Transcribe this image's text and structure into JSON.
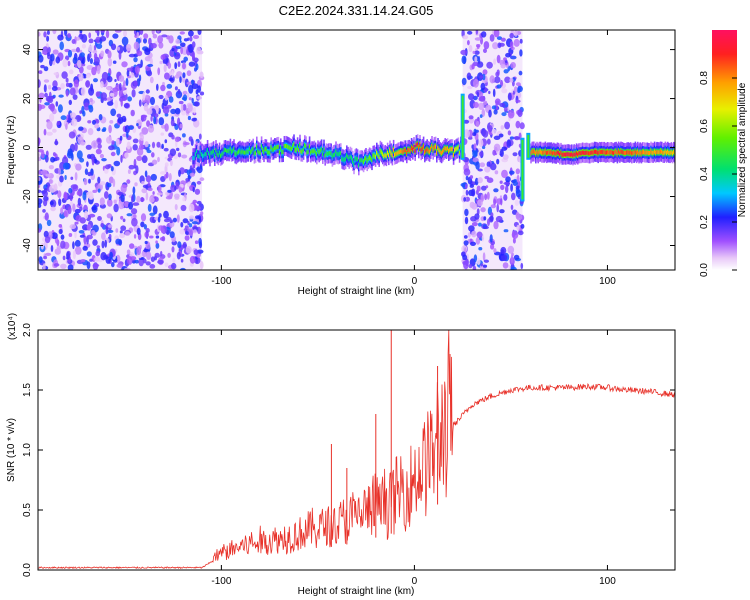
{
  "title": "C2E2.2024.331.14.24.G05",
  "chart_data": [
    {
      "type": "heatmap",
      "xlabel": "Height of straight line (km)",
      "ylabel": "Frequency (Hz)",
      "xlim": [
        -195,
        135
      ],
      "ylim": [
        -50,
        48
      ],
      "xticks": [
        -100,
        0,
        100
      ],
      "yticks": [
        -40,
        -20,
        0,
        20,
        40
      ],
      "colorbar": {
        "label": "Normalized spectral amplitude",
        "range": [
          0,
          1
        ],
        "ticks": [
          0.0,
          0.2,
          0.4,
          0.6,
          0.8
        ]
      },
      "noise_regions": [
        [
          -195,
          -110
        ],
        [
          25,
          56
        ]
      ],
      "signal_track": {
        "x": [
          -115,
          -100,
          -80,
          -60,
          -40,
          -30,
          -20,
          -10,
          0,
          10,
          20,
          25
        ],
        "frequency": [
          -3,
          -2,
          -1,
          0,
          -3,
          -6,
          -3,
          -2,
          0,
          -1,
          -2,
          0
        ],
        "amplitude": [
          0.35,
          0.45,
          0.5,
          0.55,
          0.45,
          0.45,
          0.6,
          0.75,
          0.9,
          0.8,
          0.75,
          0.5
        ]
      },
      "signal_track_2": {
        "x": [
          60,
          70,
          80,
          90,
          100,
          110,
          120,
          135
        ],
        "frequency": [
          -2,
          -2,
          -3,
          -2,
          -2,
          -2,
          -2,
          -2
        ],
        "amplitude": [
          0.8,
          0.85,
          0.95,
          0.9,
          0.85,
          0.85,
          0.8,
          0.75
        ]
      }
    },
    {
      "type": "line",
      "xlabel": "Height of straight line (km)",
      "ylabel": "SNR (10 * v/v)",
      "y_multiplier": "(x10⁴)",
      "xlim": [
        -195,
        135
      ],
      "ylim": [
        0,
        2.0
      ],
      "xticks": [
        -100,
        0,
        100
      ],
      "yticks": [
        0.0,
        0.5,
        1.0,
        1.5,
        2.0
      ],
      "series": [
        {
          "color": "#e8322a",
          "x": [
            -195,
            -110,
            -100,
            -90,
            -80,
            -70,
            -60,
            -50,
            -40,
            -30,
            -20,
            -10,
            0,
            10,
            15,
            20,
            30,
            40,
            50,
            60,
            70,
            80,
            90,
            100,
            110,
            120,
            135
          ],
          "y": [
            0.02,
            0.02,
            0.12,
            0.17,
            0.2,
            0.22,
            0.26,
            0.3,
            0.33,
            0.38,
            0.45,
            0.52,
            0.65,
            0.85,
            1.0,
            1.2,
            1.38,
            1.45,
            1.5,
            1.52,
            1.52,
            1.52,
            1.53,
            1.52,
            1.5,
            1.49,
            1.46
          ]
        }
      ],
      "spikes": [
        {
          "x": -12,
          "y": 2.0
        },
        {
          "x": 12,
          "y": 1.7
        },
        {
          "x": -20,
          "y": 1.3
        },
        {
          "x": -43,
          "y": 1.05
        },
        {
          "x": -35,
          "y": 0.85
        }
      ]
    }
  ]
}
